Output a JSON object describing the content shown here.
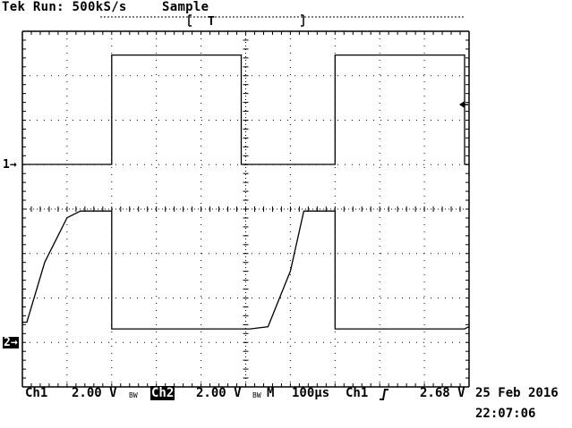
{
  "header": {
    "status": "Tek Run: 500kS/s",
    "acquisition": "Sample",
    "trigger_marker": "T"
  },
  "channels": {
    "ch1_marker": "1",
    "ch2_marker": "2"
  },
  "footer": {
    "ch1_label": "Ch1",
    "ch1_scale": "2.00 V",
    "ch2_label": "Ch2",
    "ch2_scale": "2.00 V",
    "bw_symbol": "BW",
    "timebase_label": "M",
    "timebase": "100µs",
    "trigger_source": "Ch1",
    "trigger_slope_icon": "rising-edge-icon",
    "trigger_level": "2.68 V",
    "date": "25 Feb 2016",
    "time": "22:07:06"
  },
  "chart_data": {
    "type": "line",
    "grid": true,
    "series": [
      {
        "name": "1",
        "description_points_x_div": [
          0,
          2.0,
          2.0,
          4.9,
          4.9,
          7.0,
          7.0,
          9.9,
          9.9,
          10
        ],
        "y_div_units": [
          0,
          0,
          2.46,
          2.46,
          0,
          0,
          2.46,
          2.46,
          0,
          0
        ]
      },
      {
        "name": "2",
        "description_points_x_div": [
          0,
          0.1,
          0.5,
          1.0,
          1.3,
          2.0,
          2.0,
          5.1,
          5.5,
          6.0,
          6.3,
          7.0,
          7.0,
          9.9,
          10
        ],
        "y_div_units": [
          0.45,
          0.45,
          1.8,
          2.8,
          2.95,
          2.95,
          0.3,
          0.3,
          0.35,
          1.6,
          2.95,
          2.95,
          0.3,
          0.3,
          0.35
        ]
      }
    ]
  }
}
